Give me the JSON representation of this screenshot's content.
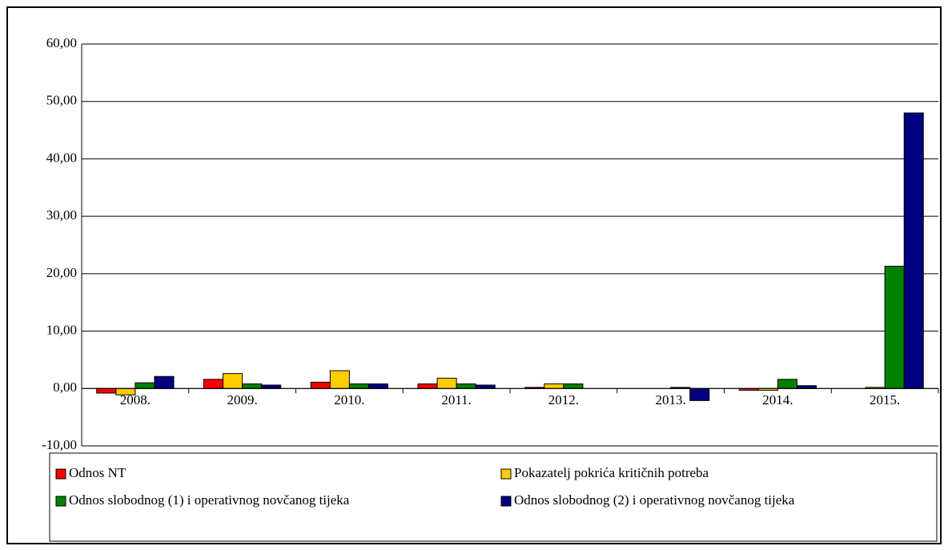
{
  "chart_data": {
    "type": "bar",
    "categories": [
      "2008.",
      "2009.",
      "2010.",
      "2011.",
      "2012.",
      "2013.",
      "2014.",
      "2015."
    ],
    "series": [
      {
        "name": "Odnos NT",
        "color": "#ff0000",
        "values": [
          -0.8,
          1.6,
          1.1,
          0.8,
          0.2,
          0.0,
          -0.3,
          0.0
        ]
      },
      {
        "name": "Pokazatelj pokrića kritičnih potreba",
        "color": "#ffcc00",
        "values": [
          -1.1,
          2.6,
          3.1,
          1.8,
          0.8,
          0.0,
          -0.3,
          0.2
        ]
      },
      {
        "name": "Odnos slobodnog (1) i operativnog novčanog tijeka",
        "color": "#008000",
        "values": [
          1.0,
          0.8,
          0.8,
          0.8,
          0.8,
          0.2,
          1.6,
          21.3
        ]
      },
      {
        "name": "Odnos slobodnog (2) i operativnog novčanog tijeka",
        "color": "#000080",
        "values": [
          2.1,
          0.6,
          0.8,
          0.6,
          0.0,
          -2.1,
          0.5,
          48.0
        ]
      }
    ],
    "ylim": [
      -10,
      60
    ],
    "yticks": [
      {
        "value": -10,
        "label": "-10,00"
      },
      {
        "value": 0,
        "label": "0,00"
      },
      {
        "value": 10,
        "label": "10,00"
      },
      {
        "value": 20,
        "label": "20,00"
      },
      {
        "value": 30,
        "label": "30,00"
      },
      {
        "value": 40,
        "label": "40,00"
      },
      {
        "value": 50,
        "label": "50,00"
      },
      {
        "value": 60,
        "label": "60,00"
      }
    ],
    "grid": true,
    "legend": "bottom"
  }
}
